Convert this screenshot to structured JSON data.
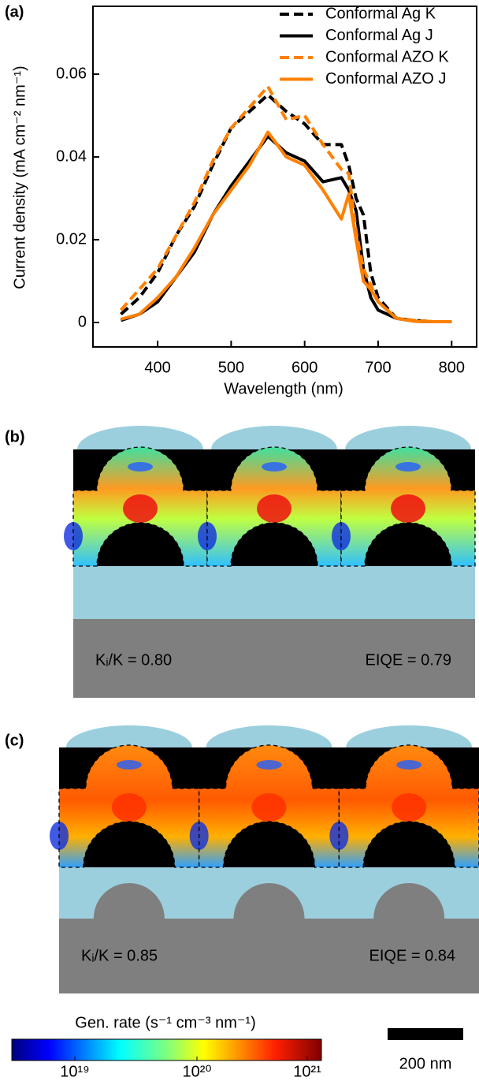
{
  "chart_data": {
    "type": "line",
    "label": "(a)",
    "x_label": "Wavelength (nm)",
    "y_label": "Current density (mA cm⁻² nm⁻¹)",
    "x": [
      350,
      375,
      400,
      425,
      450,
      475,
      500,
      525,
      550,
      575,
      600,
      625,
      650,
      660,
      670,
      680,
      690,
      700,
      725,
      750,
      775,
      800
    ],
    "series": [
      {
        "name": "Conformal Ag K",
        "color": "#000000",
        "linestyle": "dashed",
        "values": [
          0.002,
          0.006,
          0.012,
          0.021,
          0.028,
          0.038,
          0.047,
          0.051,
          0.055,
          0.051,
          0.048,
          0.043,
          0.043,
          0.038,
          0.03,
          0.026,
          0.012,
          0.006,
          0.001,
          0.0005,
          0.0002,
          0.0002
        ]
      },
      {
        "name": "Conformal Ag J",
        "color": "#000000",
        "linestyle": "solid",
        "values": [
          0.0005,
          0.002,
          0.005,
          0.011,
          0.017,
          0.026,
          0.033,
          0.039,
          0.045,
          0.041,
          0.039,
          0.034,
          0.035,
          0.032,
          0.027,
          0.013,
          0.006,
          0.003,
          0.001,
          0.0003,
          0.0002,
          0.0002
        ]
      },
      {
        "name": "Conformal AZO K",
        "color": "#ff8000",
        "linestyle": "dashed",
        "values": [
          0.003,
          0.008,
          0.013,
          0.021,
          0.029,
          0.039,
          0.047,
          0.052,
          0.057,
          0.049,
          0.05,
          0.043,
          0.037,
          0.036,
          0.022,
          0.013,
          0.009,
          0.005,
          0.001,
          0.0005,
          0.0002,
          0.0002
        ]
      },
      {
        "name": "Conformal AZO J",
        "color": "#ff8000",
        "linestyle": "solid",
        "values": [
          0.0008,
          0.002,
          0.006,
          0.011,
          0.018,
          0.026,
          0.032,
          0.038,
          0.046,
          0.04,
          0.038,
          0.032,
          0.025,
          0.031,
          0.02,
          0.01,
          0.008,
          0.005,
          0.001,
          0.0003,
          0.0002,
          0.0002
        ]
      }
    ],
    "xlim": [
      312,
      834
    ],
    "ylim": [
      -0.0059,
      0.0764
    ],
    "xticks": [
      400,
      500,
      600,
      700,
      800
    ],
    "yticks": [
      0,
      0.02,
      0.04,
      0.06
    ],
    "legend": "upper right"
  },
  "panels": [
    {
      "label": "(b)",
      "ratio": "Kᵢ/K = 0.80",
      "eiqe": "EIQE = 0.79"
    },
    {
      "label": "(c)",
      "ratio": "Kᵢ/K = 0.85",
      "eiqe": "EIQE = 0.84"
    }
  ],
  "colorbar": {
    "title": "Gen. rate (s⁻¹ cm⁻³ nm⁻¹)",
    "ticks": [
      "10¹⁹",
      "10²⁰",
      "10²¹"
    ]
  },
  "scale_bar": "200 nm"
}
